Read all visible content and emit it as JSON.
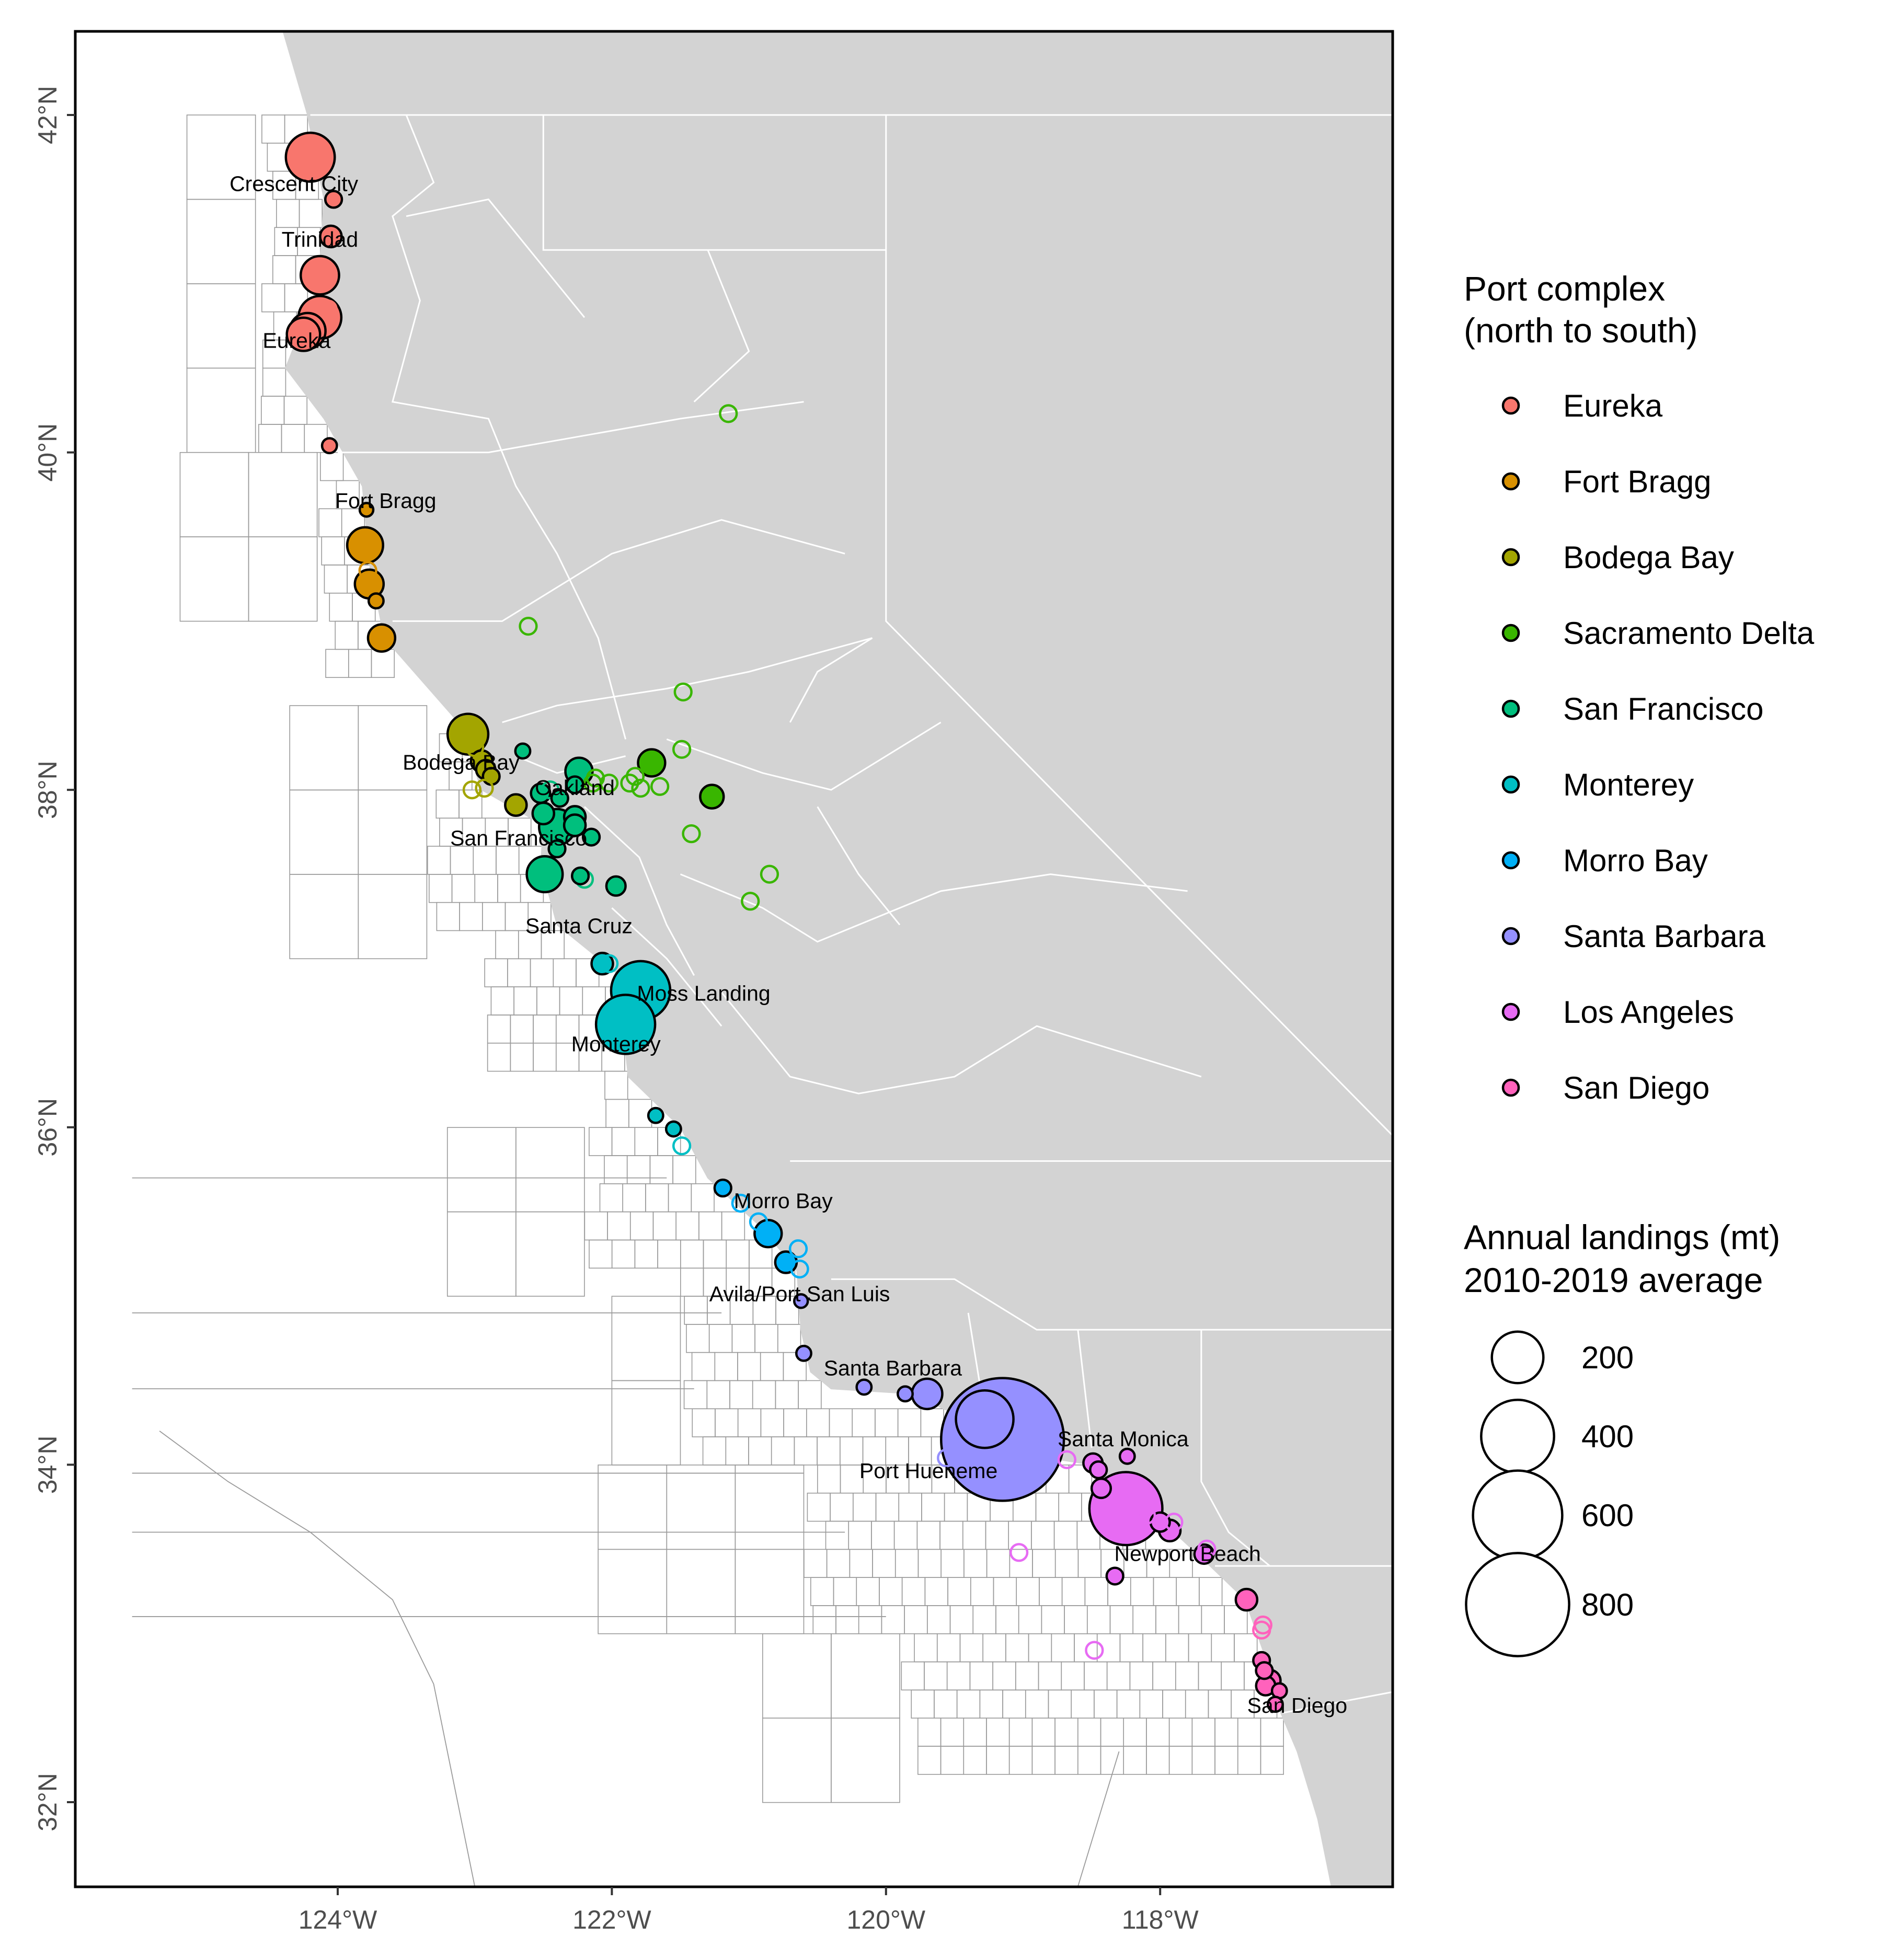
{
  "map": {
    "lon_range": [
      -125.3,
      -116.0
    ],
    "lat_range": [
      31.5,
      42.5
    ],
    "x_ticks": [
      "124°W",
      "122°W",
      "120°W",
      "118°W"
    ],
    "y_ticks": [
      "32°N",
      "34°N",
      "36°N",
      "38°N",
      "40°N",
      "42°N"
    ],
    "colors": {
      "land": "#d3d3d3",
      "ocean": "#ffffff",
      "block_grid": "#9a9a9a",
      "county_lines": "#ffffff"
    }
  },
  "legend": {
    "port_title_line1": "Port complex",
    "port_title_line2": "(north to south)",
    "port_complexes": [
      {
        "name": "Eureka",
        "color": "#F8766D"
      },
      {
        "name": "Fort Bragg",
        "color": "#D89000"
      },
      {
        "name": "Bodega Bay",
        "color": "#A3A500"
      },
      {
        "name": "Sacramento Delta",
        "color": "#39B600"
      },
      {
        "name": "San Francisco",
        "color": "#00BF7D"
      },
      {
        "name": "Monterey",
        "color": "#00BFC4"
      },
      {
        "name": "Morro Bay",
        "color": "#00B0F6"
      },
      {
        "name": "Santa Barbara",
        "color": "#9590FF"
      },
      {
        "name": "Los Angeles",
        "color": "#E76BF3"
      },
      {
        "name": "San Diego",
        "color": "#FF62BC"
      }
    ],
    "size_title_line1": "Annual landings (mt)",
    "size_title_line2": "2010-2019 average",
    "sizes": [
      "200",
      "400",
      "600",
      "800"
    ]
  },
  "port_labels": [
    {
      "name": "Crescent City",
      "lon": -124.32,
      "lat": 41.55
    },
    {
      "name": "Trinidad",
      "lon": -124.13,
      "lat": 41.22
    },
    {
      "name": "Eureka",
      "lon": -124.3,
      "lat": 40.62
    },
    {
      "name": "Fort Bragg",
      "lon": -123.65,
      "lat": 39.67
    },
    {
      "name": "Bodega Bay",
      "lon": -123.1,
      "lat": 38.12
    },
    {
      "name": "Oakland",
      "lon": -122.27,
      "lat": 37.97
    },
    {
      "name": "San Francisco",
      "lon": -122.68,
      "lat": 37.67
    },
    {
      "name": "Santa Cruz",
      "lon": -122.24,
      "lat": 37.15
    },
    {
      "name": "Moss Landing",
      "lon": -121.33,
      "lat": 36.75
    },
    {
      "name": "Monterey",
      "lon": -121.97,
      "lat": 36.45
    },
    {
      "name": "Morro Bay",
      "lon": -120.75,
      "lat": 35.52
    },
    {
      "name": "Avila/Port San Luis",
      "lon": -120.63,
      "lat": 34.97
    },
    {
      "name": "Santa Barbara",
      "lon": -119.95,
      "lat": 34.53
    },
    {
      "name": "Santa Monica",
      "lon": -118.27,
      "lat": 34.11
    },
    {
      "name": "Port Hueneme",
      "lon": -119.69,
      "lat": 33.92
    },
    {
      "name": "Newport Beach",
      "lon": -117.8,
      "lat": 33.43
    },
    {
      "name": "San Diego",
      "lon": -117.0,
      "lat": 32.53
    }
  ],
  "ports": [
    {
      "c": "Eureka",
      "lon": -124.2,
      "lat": 41.75,
      "mt": 130,
      "filled": true
    },
    {
      "c": "Eureka",
      "lon": -124.03,
      "lat": 41.5,
      "mt": 15,
      "filled": true
    },
    {
      "c": "Eureka",
      "lon": -124.05,
      "lat": 41.28,
      "mt": 25,
      "filled": true
    },
    {
      "c": "Eureka",
      "lon": -124.13,
      "lat": 41.05,
      "mt": 80,
      "filled": true
    },
    {
      "c": "Eureka",
      "lon": -124.07,
      "lat": 40.85,
      "mt": 15,
      "filled": false
    },
    {
      "c": "Eureka",
      "lon": -124.13,
      "lat": 40.8,
      "mt": 100,
      "filled": true
    },
    {
      "c": "Eureka",
      "lon": -124.22,
      "lat": 40.72,
      "mt": 70,
      "filled": true
    },
    {
      "c": "Eureka",
      "lon": -124.25,
      "lat": 40.7,
      "mt": 60,
      "filled": true
    },
    {
      "c": "Eureka",
      "lon": -124.06,
      "lat": 40.04,
      "mt": 12,
      "filled": true
    },
    {
      "c": "Fort Bragg",
      "lon": -123.79,
      "lat": 39.66,
      "mt": 10,
      "filled": true
    },
    {
      "c": "Fort Bragg",
      "lon": -123.8,
      "lat": 39.45,
      "mt": 70,
      "filled": true
    },
    {
      "c": "Fort Bragg",
      "lon": -123.78,
      "lat": 39.3,
      "mt": 15,
      "filled": false
    },
    {
      "c": "Fort Bragg",
      "lon": -123.77,
      "lat": 39.22,
      "mt": 45,
      "filled": true
    },
    {
      "c": "Fort Bragg",
      "lon": -123.72,
      "lat": 39.12,
      "mt": 12,
      "filled": true
    },
    {
      "c": "Fort Bragg",
      "lon": -123.68,
      "lat": 38.9,
      "mt": 40,
      "filled": true
    },
    {
      "c": "Bodega Bay",
      "lon": -123.05,
      "lat": 38.33,
      "mt": 90,
      "filled": true
    },
    {
      "c": "Bodega Bay",
      "lon": -123.0,
      "lat": 38.25,
      "mt": 15,
      "filled": false
    },
    {
      "c": "Bodega Bay",
      "lon": -122.95,
      "lat": 38.17,
      "mt": 25,
      "filled": true
    },
    {
      "c": "Bodega Bay",
      "lon": -122.92,
      "lat": 38.12,
      "mt": 20,
      "filled": true
    },
    {
      "c": "Bodega Bay",
      "lon": -122.88,
      "lat": 38.08,
      "mt": 15,
      "filled": true
    },
    {
      "c": "Bodega Bay",
      "lon": -123.02,
      "lat": 38.0,
      "mt": 15,
      "filled": false
    },
    {
      "c": "Bodega Bay",
      "lon": -122.93,
      "lat": 38.01,
      "mt": 15,
      "filled": false
    },
    {
      "c": "Bodega Bay",
      "lon": -122.7,
      "lat": 37.91,
      "mt": 25,
      "filled": true
    },
    {
      "c": "Sacramento Delta",
      "lon": -121.15,
      "lat": 40.23,
      "mt": 15,
      "filled": false
    },
    {
      "c": "Sacramento Delta",
      "lon": -122.61,
      "lat": 38.97,
      "mt": 15,
      "filled": false
    },
    {
      "c": "Sacramento Delta",
      "lon": -121.48,
      "lat": 38.58,
      "mt": 15,
      "filled": false
    },
    {
      "c": "Sacramento Delta",
      "lon": -121.49,
      "lat": 38.24,
      "mt": 15,
      "filled": false
    },
    {
      "c": "Sacramento Delta",
      "lon": -121.71,
      "lat": 38.16,
      "mt": 40,
      "filled": true
    },
    {
      "c": "Sacramento Delta",
      "lon": -122.12,
      "lat": 38.07,
      "mt": 15,
      "filled": false
    },
    {
      "c": "Sacramento Delta",
      "lon": -122.14,
      "lat": 38.04,
      "mt": 15,
      "filled": false
    },
    {
      "c": "Sacramento Delta",
      "lon": -122.02,
      "lat": 38.04,
      "mt": 15,
      "filled": false
    },
    {
      "c": "Sacramento Delta",
      "lon": -121.87,
      "lat": 38.04,
      "mt": 15,
      "filled": false
    },
    {
      "c": "Sacramento Delta",
      "lon": -121.83,
      "lat": 38.08,
      "mt": 15,
      "filled": false
    },
    {
      "c": "Sacramento Delta",
      "lon": -121.79,
      "lat": 38.01,
      "mt": 15,
      "filled": false
    },
    {
      "c": "Sacramento Delta",
      "lon": -121.65,
      "lat": 38.02,
      "mt": 15,
      "filled": false
    },
    {
      "c": "Sacramento Delta",
      "lon": -121.27,
      "lat": 37.96,
      "mt": 30,
      "filled": true
    },
    {
      "c": "Sacramento Delta",
      "lon": -121.42,
      "lat": 37.74,
      "mt": 15,
      "filled": false
    },
    {
      "c": "Sacramento Delta",
      "lon": -120.85,
      "lat": 37.5,
      "mt": 15,
      "filled": false
    },
    {
      "c": "Sacramento Delta",
      "lon": -120.99,
      "lat": 37.34,
      "mt": 15,
      "filled": false
    },
    {
      "c": "San Francisco",
      "lon": -122.65,
      "lat": 38.23,
      "mt": 12,
      "filled": true
    },
    {
      "c": "San Francisco",
      "lon": -122.24,
      "lat": 38.11,
      "mt": 40,
      "filled": true
    },
    {
      "c": "San Francisco",
      "lon": -122.27,
      "lat": 38.03,
      "mt": 15,
      "filled": true
    },
    {
      "c": "San Francisco",
      "lon": -122.52,
      "lat": 37.98,
      "mt": 20,
      "filled": true
    },
    {
      "c": "San Francisco",
      "lon": -122.45,
      "lat": 38.0,
      "mt": 15,
      "filled": false
    },
    {
      "c": "San Francisco",
      "lon": -122.38,
      "lat": 37.95,
      "mt": 15,
      "filled": true
    },
    {
      "c": "San Francisco",
      "lon": -122.27,
      "lat": 37.84,
      "mt": 25,
      "filled": true
    },
    {
      "c": "San Francisco",
      "lon": -122.5,
      "lat": 37.86,
      "mt": 25,
      "filled": true
    },
    {
      "c": "San Francisco",
      "lon": -122.27,
      "lat": 37.79,
      "mt": 25,
      "filled": true
    },
    {
      "c": "San Francisco",
      "lon": -122.4,
      "lat": 37.78,
      "mt": 70,
      "filled": true
    },
    {
      "c": "San Francisco",
      "lon": -122.15,
      "lat": 37.72,
      "mt": 15,
      "filled": true
    },
    {
      "c": "San Francisco",
      "lon": -122.4,
      "lat": 37.65,
      "mt": 15,
      "filled": true
    },
    {
      "c": "San Francisco",
      "lon": -122.49,
      "lat": 37.5,
      "mt": 70,
      "filled": true
    },
    {
      "c": "San Francisco",
      "lon": -122.2,
      "lat": 37.47,
      "mt": 15,
      "filled": false
    },
    {
      "c": "San Francisco",
      "lon": -122.23,
      "lat": 37.49,
      "mt": 15,
      "filled": true
    },
    {
      "c": "San Francisco",
      "lon": -121.97,
      "lat": 37.43,
      "mt": 20,
      "filled": true
    },
    {
      "c": "Monterey",
      "lon": -122.02,
      "lat": 36.97,
      "mt": 15,
      "filled": false
    },
    {
      "c": "Monterey",
      "lon": -122.07,
      "lat": 36.97,
      "mt": 25,
      "filled": true
    },
    {
      "c": "Monterey",
      "lon": -121.79,
      "lat": 36.81,
      "mt": 190,
      "filled": true
    },
    {
      "c": "Monterey",
      "lon": -121.9,
      "lat": 36.61,
      "mt": 190,
      "filled": true
    },
    {
      "c": "Monterey",
      "lon": -121.68,
      "lat": 36.07,
      "mt": 12,
      "filled": true
    },
    {
      "c": "Monterey",
      "lon": -121.55,
      "lat": 35.99,
      "mt": 12,
      "filled": true
    },
    {
      "c": "Monterey",
      "lon": -121.49,
      "lat": 35.89,
      "mt": 15,
      "filled": false
    },
    {
      "c": "Morro Bay",
      "lon": -121.19,
      "lat": 35.64,
      "mt": 15,
      "filled": true
    },
    {
      "c": "Morro Bay",
      "lon": -121.06,
      "lat": 35.55,
      "mt": 15,
      "filled": false
    },
    {
      "c": "Morro Bay",
      "lon": -120.93,
      "lat": 35.44,
      "mt": 15,
      "filled": false
    },
    {
      "c": "Morro Bay",
      "lon": -120.86,
      "lat": 35.37,
      "mt": 40,
      "filled": true
    },
    {
      "c": "Morro Bay",
      "lon": -120.64,
      "lat": 35.28,
      "mt": 15,
      "filled": false
    },
    {
      "c": "Morro Bay",
      "lon": -120.73,
      "lat": 35.2,
      "mt": 25,
      "filled": true
    },
    {
      "c": "Morro Bay",
      "lon": -120.63,
      "lat": 35.16,
      "mt": 15,
      "filled": false
    },
    {
      "c": "Santa Barbara",
      "lon": -120.62,
      "lat": 34.97,
      "mt": 10,
      "filled": true
    },
    {
      "c": "Santa Barbara",
      "lon": -120.6,
      "lat": 34.66,
      "mt": 12,
      "filled": true
    },
    {
      "c": "Santa Barbara",
      "lon": -120.16,
      "lat": 34.46,
      "mt": 12,
      "filled": true
    },
    {
      "c": "Santa Barbara",
      "lon": -119.86,
      "lat": 34.42,
      "mt": 12,
      "filled": true
    },
    {
      "c": "Santa Barbara",
      "lon": -119.7,
      "lat": 34.42,
      "mt": 50,
      "filled": true
    },
    {
      "c": "Santa Barbara",
      "lon": -119.28,
      "lat": 34.27,
      "mt": 180,
      "filled": true
    },
    {
      "c": "Santa Barbara",
      "lon": -119.15,
      "lat": 34.15,
      "mt": 820,
      "filled": true
    },
    {
      "c": "Santa Barbara",
      "lon": -119.56,
      "lat": 34.04,
      "mt": 15,
      "filled": false
    },
    {
      "c": "Los Angeles",
      "lon": -118.68,
      "lat": 34.03,
      "mt": 15,
      "filled": false
    },
    {
      "c": "Los Angeles",
      "lon": -118.49,
      "lat": 34.01,
      "mt": 20,
      "filled": true
    },
    {
      "c": "Los Angeles",
      "lon": -118.45,
      "lat": 33.97,
      "mt": 15,
      "filled": true
    },
    {
      "c": "Los Angeles",
      "lon": -118.43,
      "lat": 33.86,
      "mt": 20,
      "filled": true
    },
    {
      "c": "Los Angeles",
      "lon": -118.24,
      "lat": 34.05,
      "mt": 12,
      "filled": true
    },
    {
      "c": "Los Angeles",
      "lon": -118.25,
      "lat": 33.74,
      "mt": 290,
      "filled": true
    },
    {
      "c": "Los Angeles",
      "lon": -118.21,
      "lat": 33.78,
      "mt": 12,
      "filled": false
    },
    {
      "c": "Los Angeles",
      "lon": -118.1,
      "lat": 33.7,
      "mt": 15,
      "filled": false
    },
    {
      "c": "Los Angeles",
      "lon": -118.0,
      "lat": 33.66,
      "mt": 20,
      "filled": true
    },
    {
      "c": "Los Angeles",
      "lon": -117.93,
      "lat": 33.61,
      "mt": 25,
      "filled": true
    },
    {
      "c": "Los Angeles",
      "lon": -117.9,
      "lat": 33.66,
      "mt": 15,
      "filled": false
    },
    {
      "c": "Los Angeles",
      "lon": -117.68,
      "lat": 33.47,
      "mt": 20,
      "filled": true
    },
    {
      "c": "Los Angeles",
      "lon": -117.66,
      "lat": 33.5,
      "mt": 15,
      "filled": false
    },
    {
      "c": "Los Angeles",
      "lon": -119.03,
      "lat": 33.48,
      "mt": 15,
      "filled": false
    },
    {
      "c": "Los Angeles",
      "lon": -118.33,
      "lat": 33.34,
      "mt": 15,
      "filled": true
    },
    {
      "c": "Los Angeles",
      "lon": -118.48,
      "lat": 32.9,
      "mt": 15,
      "filled": false
    },
    {
      "c": "San Diego",
      "lon": -117.37,
      "lat": 33.2,
      "mt": 25,
      "filled": true
    },
    {
      "c": "San Diego",
      "lon": -117.25,
      "lat": 33.05,
      "mt": 15,
      "filled": false
    },
    {
      "c": "San Diego",
      "lon": -117.26,
      "lat": 33.02,
      "mt": 15,
      "filled": false
    },
    {
      "c": "San Diego",
      "lon": -117.26,
      "lat": 32.84,
      "mt": 15,
      "filled": true
    },
    {
      "c": "San Diego",
      "lon": -117.24,
      "lat": 32.78,
      "mt": 15,
      "filled": true
    },
    {
      "c": "San Diego",
      "lon": -117.2,
      "lat": 32.72,
      "mt": 25,
      "filled": true
    },
    {
      "c": "San Diego",
      "lon": -117.23,
      "lat": 32.69,
      "mt": 20,
      "filled": true
    },
    {
      "c": "San Diego",
      "lon": -117.13,
      "lat": 32.66,
      "mt": 12,
      "filled": true
    },
    {
      "c": "San Diego",
      "lon": -117.16,
      "lat": 32.58,
      "mt": 12,
      "filled": true
    }
  ]
}
